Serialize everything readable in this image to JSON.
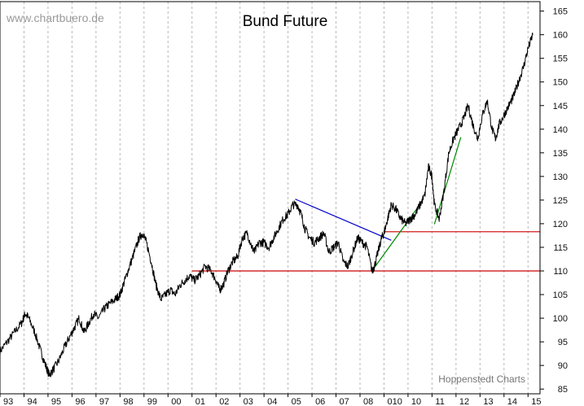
{
  "chart_data": {
    "type": "line",
    "title": "Bund Future",
    "watermark": "www.chartbuero.de",
    "credit": "Hoppenstedt Charts",
    "xlabel": "",
    "ylabel": "",
    "x_tick_labels": [
      "93",
      "94",
      "95",
      "96",
      "97",
      "98",
      "99",
      "00",
      "01",
      "02",
      "03",
      "04",
      "05",
      "06",
      "07",
      "08",
      "010",
      "10",
      "11",
      "12",
      "13",
      "14",
      "15"
    ],
    "y_ticks": [
      85,
      90,
      95,
      100,
      105,
      110,
      115,
      120,
      125,
      130,
      135,
      140,
      145,
      150,
      155,
      160,
      165
    ],
    "xlim": [
      1993.0,
      2015.5
    ],
    "ylim": [
      84,
      167
    ],
    "grid": {
      "vertical": "dashed",
      "horizontal": false
    },
    "series": [
      {
        "color": "#000000",
        "x": [
          1993.0,
          1993.3,
          1993.6,
          1993.9,
          1994.05,
          1994.2,
          1994.45,
          1994.7,
          1994.9,
          1995.05,
          1995.2,
          1995.45,
          1995.7,
          1995.9,
          1996.1,
          1996.3,
          1996.5,
          1996.7,
          1996.9,
          1997.1,
          1997.35,
          1997.55,
          1997.8,
          1998.0,
          1998.2,
          1998.4,
          1998.6,
          1998.8,
          1998.95,
          1999.1,
          1999.3,
          1999.5,
          1999.7,
          1999.9,
          2000.1,
          2000.3,
          2000.5,
          2000.7,
          2000.9,
          2001.1,
          2001.3,
          2001.55,
          2001.8,
          2002.0,
          2002.15,
          2002.3,
          2002.5,
          2002.7,
          2002.9,
          2003.1,
          2003.3,
          2003.5,
          2003.6,
          2003.8,
          2004.0,
          2004.2,
          2004.4,
          2004.6,
          2004.8,
          2005.0,
          2005.2,
          2005.4,
          2005.55,
          2005.7,
          2005.9,
          2006.1,
          2006.3,
          2006.5,
          2006.7,
          2006.9,
          2007.1,
          2007.3,
          2007.5,
          2007.7,
          2007.9,
          2008.1,
          2008.3,
          2008.5,
          2008.6,
          2008.75,
          2008.9,
          2009.0,
          2009.15,
          2009.3,
          2009.5,
          2009.7,
          2009.9,
          2010.1,
          2010.3,
          2010.5,
          2010.7,
          2010.85,
          2011.0,
          2011.1,
          2011.3,
          2011.5,
          2011.7,
          2011.9,
          2012.1,
          2012.3,
          2012.5,
          2012.7,
          2012.9,
          2013.1,
          2013.3,
          2013.5,
          2013.65,
          2013.8,
          2014.0,
          2014.2,
          2014.4,
          2014.6,
          2014.8,
          2015.0,
          2015.2
        ],
        "values": [
          93,
          95,
          97,
          99,
          101,
          100,
          97,
          93,
          90,
          88,
          89,
          91,
          94,
          96,
          98,
          100,
          97,
          99,
          101,
          100,
          102,
          103,
          104,
          105,
          108,
          111,
          114,
          117,
          118,
          116,
          112,
          107,
          104,
          105,
          106,
          105,
          107,
          108,
          109,
          108,
          109,
          111,
          110,
          108,
          106,
          107,
          110,
          112,
          113,
          117,
          118,
          115,
          114,
          116,
          116,
          115,
          117,
          119,
          121,
          122,
          124,
          124,
          122,
          119,
          117,
          116,
          117,
          118,
          114,
          115,
          116,
          112,
          111,
          114,
          117,
          116,
          115,
          110,
          111,
          114,
          117,
          118,
          121,
          124,
          123,
          121,
          120,
          121,
          122,
          124,
          126,
          132,
          130,
          124,
          121,
          127,
          135,
          138,
          140,
          142,
          145,
          141,
          138,
          143,
          146,
          140,
          138,
          141,
          143,
          145,
          147,
          150,
          153,
          157,
          160
        ]
      }
    ],
    "lines": [
      {
        "label": "",
        "color": "#cc0000",
        "from": [
          2001.0,
          110
        ],
        "to": [
          2015.5,
          110
        ]
      },
      {
        "label": "",
        "color": "#cc0000",
        "from": [
          2009.0,
          118.3
        ],
        "to": [
          2015.5,
          118.3
        ]
      },
      {
        "label": "",
        "color": "#0000cc",
        "from": [
          2005.3,
          125.2
        ],
        "to": [
          2009.3,
          116.5
        ]
      },
      {
        "label": "",
        "color": "#008800",
        "from": [
          2008.5,
          110.0
        ],
        "to": [
          2010.6,
          124.8
        ]
      },
      {
        "label": "",
        "color": "#008800",
        "from": [
          2011.1,
          119.9
        ],
        "to": [
          2012.2,
          138.3
        ]
      }
    ]
  }
}
